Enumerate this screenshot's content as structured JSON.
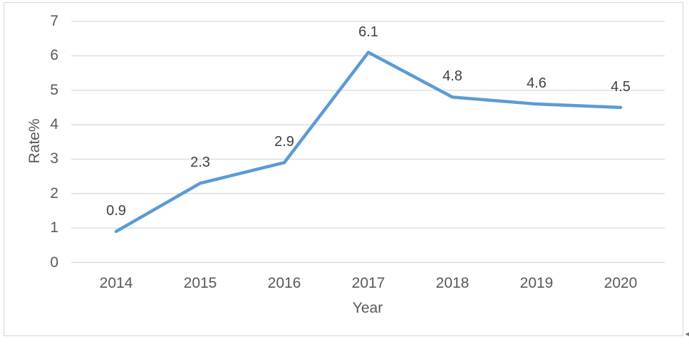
{
  "chart_data": {
    "type": "line",
    "title": "",
    "categories": [
      "2014",
      "2015",
      "2016",
      "2017",
      "2018",
      "2019",
      "2020"
    ],
    "values": [
      0.9,
      2.3,
      2.9,
      6.1,
      4.8,
      4.6,
      4.5
    ],
    "data_labels": [
      "0.9",
      "2.3",
      "2.9",
      "6.1",
      "4.8",
      "4.6",
      "4.5"
    ],
    "xlabel": "Year",
    "ylabel": "Rate%",
    "ylim": [
      0,
      7
    ],
    "yticks": [
      "0",
      "1",
      "2",
      "3",
      "4",
      "5",
      "6",
      "7"
    ],
    "grid": true,
    "legend": "none",
    "markers": "none",
    "colors": {
      "line": "#5B9BD5",
      "gridline": "#D9D9D9",
      "axis_tick_label": "#595959",
      "data_label": "#404040",
      "frame_border": "#D7D7D7"
    }
  },
  "icons": {
    "corner_arrow_glyph": "◄"
  }
}
